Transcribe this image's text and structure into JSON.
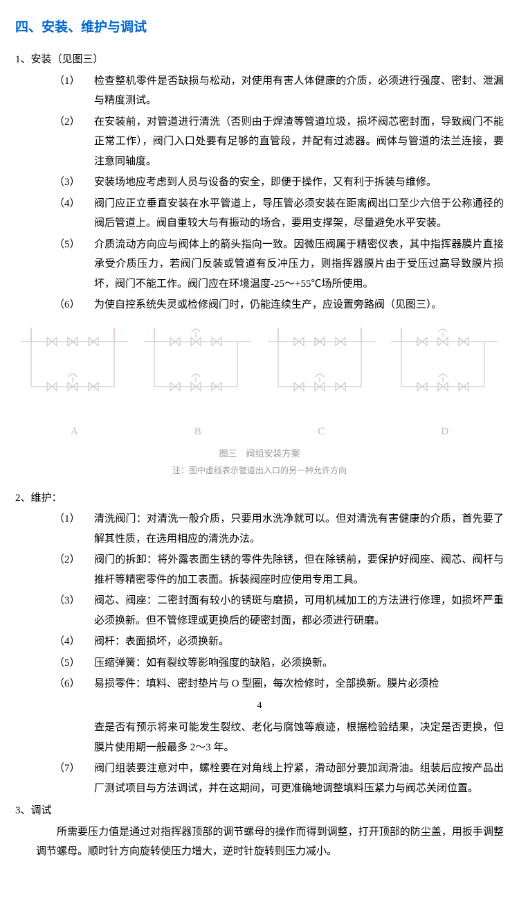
{
  "title": "四、安装、维护与调试",
  "sec1": {
    "heading": "1、安装（见图三）",
    "items": [
      {
        "n": "（1）",
        "t": "检查整机零件是否缺损与松动，对使用有害人体健康的介质，必须进行强度、密封、泄漏与精度测试。"
      },
      {
        "n": "（2）",
        "t": "在安装前，对管道进行清洗（否则由于焊渣等管道垃圾，损坏阀芯密封面，导致阀门不能正常工作），阀门入口处要有足够的直管段，并配有过滤器。阀体与管道的法兰连接，要注意同轴度。"
      },
      {
        "n": "（3）",
        "t": "安装场地应考虑到人员与设备的安全，即便于操作，又有利于拆装与维修。"
      },
      {
        "n": "（4）",
        "t": "阀门应正立垂直安装在水平管道上，导压管必须安装在距离阀出口至少六倍于公称通径的阀后管道上。阀自重较大与有振动的场合，要用支撑架，尽量避免水平安装。"
      },
      {
        "n": "（5）",
        "t": "介质流动方向应与阀体上的箭头指向一致。因微压阀属于精密仪表，其中指挥器膜片直接承受介质压力，若阀门反装或管道有反冲压力，则指挥器膜片由于受压过高导致膜片损坏，阀门不能工作。阀门应在环境温度-25～+55℃场所使用。"
      },
      {
        "n": "（6）",
        "t": "为使自控系统失灵或检修阀门时，仍能连续生产，应设置旁路阀（见图三）。"
      }
    ]
  },
  "figure": {
    "labels": [
      "A",
      "B",
      "C",
      "D"
    ],
    "caption": "图三　阀组安装方案",
    "note": "注：图中虚线表示管道出入口的另一种允许方向",
    "stroke_main": "#cccccc",
    "stroke_alt": "#e5a6c9"
  },
  "sec2": {
    "heading": "2、维护：",
    "items_a": [
      {
        "n": "（1）",
        "t": "清洗阀门：对清洗一般介质，只要用水洗净就可以。但对清洗有害健康的介质，首先要了解其性质，在选用相应的清洗办法。"
      },
      {
        "n": "（2）",
        "t": "阀门的拆卸：将外露表面生锈的零件先除锈，但在除锈前，要保护好阀座、阀芯、阀杆与推杆等精密零件的加工表面。拆装阀座时应使用专用工具。"
      },
      {
        "n": "（3）",
        "t": "阀芯、阀座：二密封面有较小的锈斑与磨损，可用机械加工的方法进行修理，如损坏严重必须换新。但不管修理或更换后的硬密封面，都必须进行研磨。"
      },
      {
        "n": "（4）",
        "t": "阀杆：表面损坏，必须换新。"
      },
      {
        "n": "（5）",
        "t": "压缩弹簧：如有裂纹等影响强度的缺陷，必须换新。"
      },
      {
        "n": "（6）",
        "t": "易损零件：填料、密封垫片与 O 型圈，每次检修时，全部换新。膜片必须检"
      }
    ],
    "page_num": "4",
    "items_b": [
      {
        "n": "",
        "t": "查是否有预示将来可能发生裂纹、老化与腐蚀等痕迹，根据检验结果，决定是否更换，但膜片使用期一般最多 2～3 年。"
      },
      {
        "n": "（7）",
        "t": "阀门组装要注意对中，螺栓要在对角线上拧紧，滑动部分要加润滑油。组装后应按产品出厂测试项目与方法调试，并在这期间，可更准确地调整填料压紧力与阀芯关闭位置。"
      }
    ]
  },
  "sec3": {
    "heading": "3、调试",
    "para": "所需要压力值是通过对指挥器顶部的调节螺母的操作而得到调整，打开顶部的防尘盖，用扳手调整调节螺母。顺时针方向旋转使压力增大，逆时针旋转则压力减小。"
  }
}
